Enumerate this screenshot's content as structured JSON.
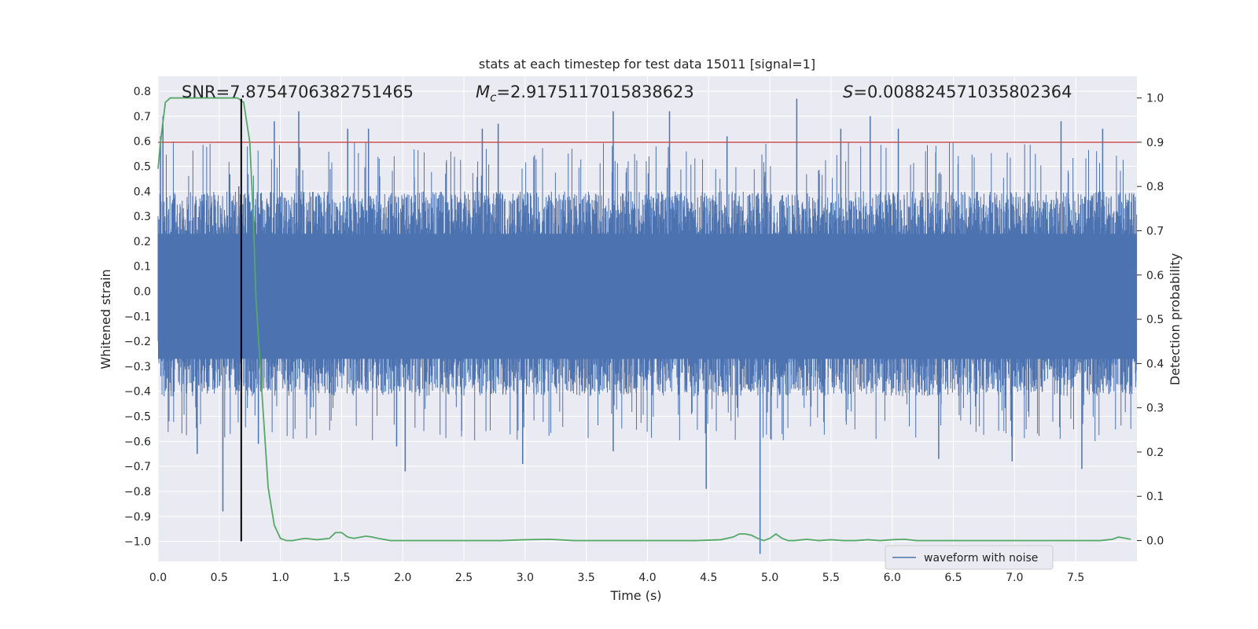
{
  "chart_data": {
    "type": "line",
    "title": "stats at each timestep for test data 15011 [signal=1]",
    "xlabel": "Time (s)",
    "ylabel_left": "Whitened strain",
    "ylabel_right": "Detection probability",
    "xlim": [
      0.0,
      8.0
    ],
    "ylim_left": [
      -1.08,
      0.86
    ],
    "ylim_right": [
      -0.047,
      1.049
    ],
    "x_ticks": [
      "0.0",
      "0.5",
      "1.0",
      "1.5",
      "2.0",
      "2.5",
      "3.0",
      "3.5",
      "4.0",
      "4.5",
      "5.0",
      "5.5",
      "6.0",
      "6.5",
      "7.0",
      "7.5"
    ],
    "y_left_ticks": [
      "0.8",
      "0.7",
      "0.6",
      "0.5",
      "0.4",
      "0.3",
      "0.2",
      "0.1",
      "0.0",
      "-0.1",
      "-0.2",
      "-0.3",
      "-0.4",
      "-0.5",
      "-0.6",
      "-0.7",
      "-0.8",
      "-0.9",
      "-1.0"
    ],
    "y_right_ticks": [
      "1.0",
      "0.9",
      "0.8",
      "0.7",
      "0.6",
      "0.5",
      "0.4",
      "0.3",
      "0.2",
      "0.1",
      "0.0"
    ],
    "grid": true,
    "annotations": {
      "snr_text": "SNR=7.8754706382751465",
      "mc_symbol": "M",
      "mc_sub": "c",
      "mc_value": "=2.9175117015838623",
      "s_symbol": "S",
      "s_value": "=0.008824571035802364"
    },
    "legend": {
      "position": "lower right",
      "entries": [
        "waveform with noise"
      ]
    },
    "colors": {
      "waveform": "#4c72b0",
      "probability": "#55a868",
      "threshold": "#c44e52",
      "marker": "#000000",
      "background": "#eaeaf2",
      "grid": "#ffffff"
    },
    "threshold_probability": 0.9,
    "marker_line": {
      "x": 0.68,
      "y_range": [
        -1.0,
        0.77
      ]
    },
    "waveform_envelope": {
      "typical_upper": 0.4,
      "typical_lower": -0.42
    },
    "waveform_spikes": [
      [
        0.02,
        0.62
      ],
      [
        0.04,
        0.7
      ],
      [
        0.53,
        -0.88
      ],
      [
        0.32,
        -0.65
      ],
      [
        0.66,
        0.42
      ],
      [
        0.95,
        0.68
      ],
      [
        1.15,
        0.72
      ],
      [
        1.55,
        0.65
      ],
      [
        1.72,
        0.65
      ],
      [
        2.02,
        -0.72
      ],
      [
        2.65,
        0.65
      ],
      [
        2.78,
        0.67
      ],
      [
        2.98,
        -0.69
      ],
      [
        3.72,
        0.72
      ],
      [
        4.18,
        0.72
      ],
      [
        4.48,
        -0.79
      ],
      [
        4.92,
        -1.05
      ],
      [
        5.22,
        0.77
      ],
      [
        5.58,
        0.65
      ],
      [
        5.82,
        0.7
      ],
      [
        6.05,
        0.65
      ],
      [
        6.38,
        -0.67
      ],
      [
        6.98,
        -0.68
      ],
      [
        7.38,
        0.68
      ],
      [
        7.55,
        -0.71
      ],
      [
        7.72,
        0.65
      ],
      [
        0.82,
        -0.61
      ],
      [
        1.95,
        -0.62
      ],
      [
        3.72,
        -0.64
      ],
      [
        4.65,
        0.62
      ]
    ],
    "series": [
      {
        "name": "waveform with noise",
        "axis": "left"
      },
      {
        "axis": "right",
        "x": [
          0.0,
          0.02,
          0.06,
          0.1,
          0.2,
          0.3,
          0.4,
          0.5,
          0.6,
          0.65,
          0.7,
          0.75,
          0.78,
          0.8,
          0.85,
          0.9,
          0.95,
          1.0,
          1.05,
          1.1,
          1.2,
          1.3,
          1.4,
          1.45,
          1.5,
          1.55,
          1.6,
          1.7,
          1.75,
          1.8,
          1.9,
          2.0,
          2.2,
          2.4,
          2.6,
          2.8,
          3.0,
          3.2,
          3.4,
          3.6,
          3.8,
          4.0,
          4.2,
          4.4,
          4.6,
          4.7,
          4.75,
          4.8,
          4.85,
          4.9,
          4.95,
          5.0,
          5.05,
          5.1,
          5.15,
          5.2,
          5.3,
          5.4,
          5.5,
          5.6,
          5.7,
          5.8,
          5.9,
          6.0,
          6.1,
          6.2,
          6.3,
          6.5,
          6.7,
          6.9,
          7.1,
          7.3,
          7.5,
          7.6,
          7.7,
          7.8,
          7.85,
          7.95
        ],
        "values": [
          0.84,
          0.9,
          0.99,
          1.0,
          1.0,
          1.0,
          1.0,
          1.0,
          1.0,
          1.0,
          0.99,
          0.9,
          0.72,
          0.55,
          0.33,
          0.12,
          0.035,
          0.005,
          0.0,
          0.0,
          0.005,
          0.002,
          0.005,
          0.018,
          0.018,
          0.008,
          0.005,
          0.01,
          0.008,
          0.005,
          0.0,
          0.0,
          0.0,
          0.0,
          0.0,
          0.0,
          0.002,
          0.003,
          0.0,
          0.0,
          0.0,
          0.0,
          0.0,
          0.0,
          0.002,
          0.008,
          0.015,
          0.015,
          0.012,
          0.005,
          0.0,
          0.005,
          0.015,
          0.005,
          0.0,
          0.0,
          0.003,
          0.0,
          0.002,
          0.0,
          0.0,
          0.002,
          0.0,
          0.002,
          0.003,
          0.0,
          0.0,
          0.0,
          0.0,
          0.0,
          0.0,
          0.0,
          0.0,
          0.0,
          0.0,
          0.003,
          0.008,
          0.003
        ]
      }
    ]
  }
}
